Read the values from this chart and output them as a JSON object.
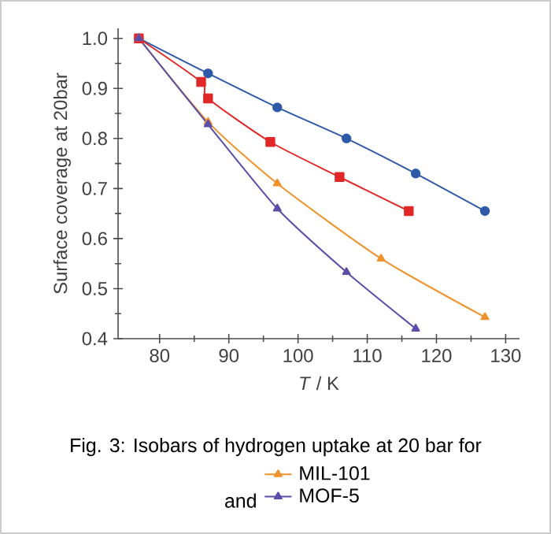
{
  "chart_data": {
    "type": "line",
    "xlabel": "*T* / K",
    "ylabel": "Surface coverage at 20bar",
    "xlim": [
      74,
      132
    ],
    "xticks": [
      80,
      90,
      100,
      110,
      120,
      130
    ],
    "ylim": [
      0.4,
      1.02
    ],
    "yticks": [
      0.4,
      0.5,
      0.6,
      0.7,
      0.8,
      0.9,
      {
        "value": 1,
        "label": "1.0"
      }
    ],
    "grid": false,
    "legend": "bottom",
    "line_style": "solid",
    "annotations": [
      "Fig. 3: Isobars of hydrogen uptake at 20 bar for",
      "and"
    ],
    "series": [
      {
        "color": "#2e5aa8",
        "marker": "circle",
        "x": [
          77,
          87,
          97,
          107,
          117,
          127
        ],
        "values": [
          1.0,
          0.93,
          0.862,
          0.8,
          0.73,
          0.655
        ]
      },
      {
        "color": "#e02828",
        "marker": "square",
        "x": [
          77,
          86,
          87,
          96,
          106,
          116
        ],
        "values": [
          1.0,
          0.913,
          0.88,
          0.793,
          0.723,
          0.655
        ]
      },
      {
        "name": "MIL-101",
        "color": "#f0922c",
        "marker": "triangle",
        "x": [
          77,
          87,
          97,
          112,
          127
        ],
        "values": [
          1.0,
          0.833,
          0.71,
          0.56,
          0.443
        ]
      },
      {
        "name": "MOF-5",
        "color": "#5a4fa8",
        "marker": "triangle",
        "x": [
          77,
          87,
          97,
          107,
          117
        ],
        "values": [
          1.0,
          0.828,
          0.66,
          0.533,
          0.42
        ]
      }
    ]
  }
}
